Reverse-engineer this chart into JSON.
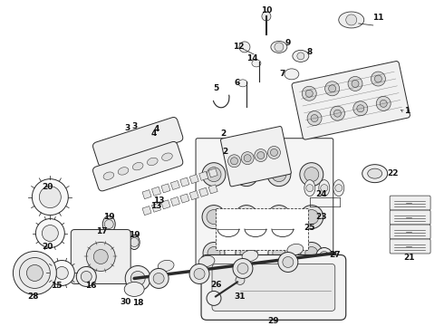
{
  "bg_color": "#ffffff",
  "line_color": "#2a2a2a",
  "figsize": [
    4.9,
    3.6
  ],
  "dpi": 100,
  "lw": 0.7
}
